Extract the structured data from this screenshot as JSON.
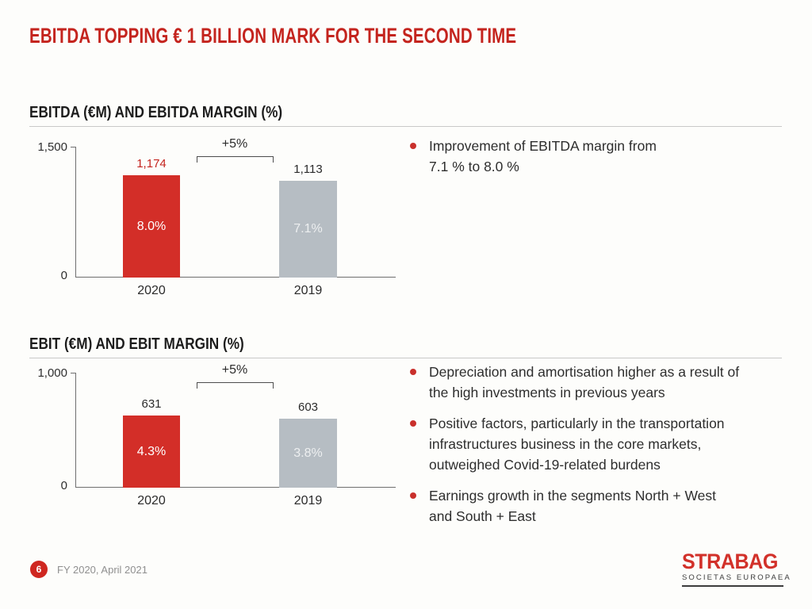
{
  "slide": {
    "title": "EBITDA TOPPING € 1 BILLION MARK FOR THE SECOND TIME"
  },
  "colors": {
    "title_red": "#c4241e",
    "bar_red": "#d32e28",
    "bar_gray": "#b6bdc3",
    "bullet_red": "#c9302c",
    "logo_red": "#d2312a"
  },
  "chart_data": [
    {
      "type": "bar",
      "title": "EBITDA (€M) AND EBITDA MARGIN (%)",
      "categories": [
        "2020",
        "2019"
      ],
      "values": [
        1174,
        1113
      ],
      "value_labels": [
        "1,174",
        "1,113"
      ],
      "value_label_colors": [
        "#c4241e",
        "#2b2b2b"
      ],
      "bar_inner_labels": [
        "8.0%",
        "7.1%"
      ],
      "bar_colors": [
        "#d32e28",
        "#b6bdc3"
      ],
      "change_annotation": "+5%",
      "ylabel": "",
      "xlabel": "",
      "ylim": [
        0,
        1500
      ],
      "y_tick_labels": [
        "1,500",
        "0"
      ],
      "grid": false,
      "legend": false
    },
    {
      "type": "bar",
      "title": "EBIT (€M) AND EBIT MARGIN (%)",
      "categories": [
        "2020",
        "2019"
      ],
      "values": [
        631,
        603
      ],
      "value_labels": [
        "631",
        "603"
      ],
      "value_label_colors": [
        "#2b2b2b",
        "#2b2b2b"
      ],
      "bar_inner_labels": [
        "4.3%",
        "3.8%"
      ],
      "bar_colors": [
        "#d32e28",
        "#b6bdc3"
      ],
      "change_annotation": "+5%",
      "ylabel": "",
      "xlabel": "",
      "ylim": [
        0,
        1000
      ],
      "y_tick_labels": [
        "1,000",
        "0"
      ],
      "grid": false,
      "legend": false
    }
  ],
  "bullets_ebitda": [
    "Improvement of EBITDA margin from\n7.1 % to 8.0 %"
  ],
  "bullets_ebit": [
    "Depreciation and amortisation higher as a result of\nthe high investments in previous years",
    "Positive factors, particularly in the transportation\ninfrastructures business in the core markets,\noutweighed Covid-19-related burdens",
    "Earnings growth in the segments North + West\nand South + East"
  ],
  "footer": {
    "page_number": "6",
    "date_label": "FY 2020, April 2021",
    "logo_main": "STRABAG",
    "logo_sub": "SOCIETAS EUROPAEA"
  }
}
